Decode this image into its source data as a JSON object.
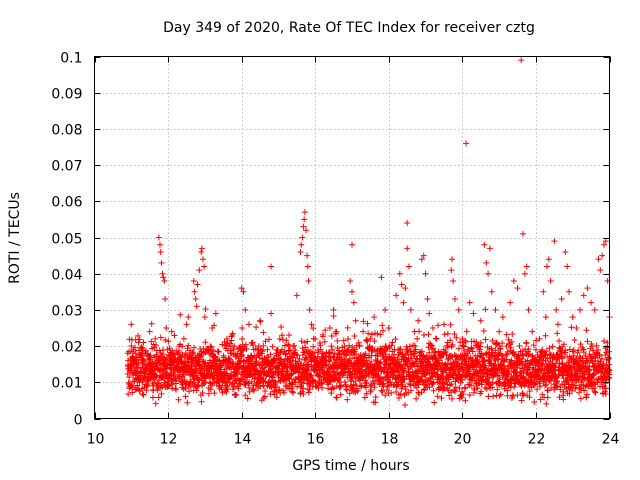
{
  "chart_data": {
    "type": "scatter",
    "title": "Day 349 of 2020, Rate Of TEC Index for receiver cztg",
    "xlabel": "GPS time / hours",
    "ylabel": "ROTI / TECUs",
    "xlim": [
      10,
      24
    ],
    "ylim": [
      0,
      0.1
    ],
    "grid": true,
    "marker": "+",
    "color": "#ff0000",
    "x_ticks": [
      {
        "value": 10,
        "label": "10"
      },
      {
        "value": 12,
        "label": "12"
      },
      {
        "value": 14,
        "label": "14"
      },
      {
        "value": 16,
        "label": "16"
      },
      {
        "value": 18,
        "label": "18"
      },
      {
        "value": 20,
        "label": "20"
      },
      {
        "value": 22,
        "label": "22"
      },
      {
        "value": 24,
        "label": "24"
      }
    ],
    "y_ticks": [
      {
        "value": 0,
        "label": "0"
      },
      {
        "value": 0.01,
        "label": "0.01"
      },
      {
        "value": 0.02,
        "label": "0.02"
      },
      {
        "value": 0.03,
        "label": "0.03"
      },
      {
        "value": 0.04,
        "label": "0.04"
      },
      {
        "value": 0.05,
        "label": "0.05"
      },
      {
        "value": 0.06,
        "label": "0.06"
      },
      {
        "value": 0.07,
        "label": "0.07"
      },
      {
        "value": 0.08,
        "label": "0.08"
      },
      {
        "value": 0.09,
        "label": "0.09"
      },
      {
        "value": 0.1,
        "label": "0.1"
      }
    ],
    "points": [
      [
        11.0,
        0.026
      ],
      [
        11.05,
        0.012
      ],
      [
        11.1,
        0.008
      ],
      [
        11.15,
        0.015
      ],
      [
        11.2,
        0.021
      ],
      [
        11.3,
        0.01
      ],
      [
        11.4,
        0.018
      ],
      [
        11.5,
        0.024
      ],
      [
        11.6,
        0.009
      ],
      [
        11.65,
        0.022
      ],
      [
        11.75,
        0.05
      ],
      [
        11.78,
        0.048
      ],
      [
        11.8,
        0.046
      ],
      [
        11.82,
        0.043
      ],
      [
        11.85,
        0.04
      ],
      [
        11.87,
        0.039
      ],
      [
        11.9,
        0.038
      ],
      [
        11.92,
        0.033
      ],
      [
        11.95,
        0.025
      ],
      [
        11.98,
        0.019
      ],
      [
        12.1,
        0.024
      ],
      [
        12.2,
        0.014
      ],
      [
        12.3,
        0.02
      ],
      [
        12.4,
        0.013
      ],
      [
        12.5,
        0.026
      ],
      [
        12.55,
        0.028
      ],
      [
        12.6,
        0.012
      ],
      [
        12.7,
        0.038
      ],
      [
        12.72,
        0.035
      ],
      [
        12.75,
        0.033
      ],
      [
        12.78,
        0.031
      ],
      [
        12.8,
        0.037
      ],
      [
        12.85,
        0.041
      ],
      [
        12.9,
        0.046
      ],
      [
        12.92,
        0.047
      ],
      [
        12.95,
        0.044
      ],
      [
        12.98,
        0.042
      ],
      [
        13.0,
        0.028
      ],
      [
        13.1,
        0.019
      ],
      [
        13.2,
        0.025
      ],
      [
        13.3,
        0.029
      ],
      [
        13.4,
        0.016
      ],
      [
        13.5,
        0.012
      ],
      [
        13.6,
        0.022
      ],
      [
        13.7,
        0.018
      ],
      [
        13.8,
        0.02
      ],
      [
        13.9,
        0.014
      ],
      [
        14.0,
        0.036
      ],
      [
        14.05,
        0.035
      ],
      [
        14.1,
        0.03
      ],
      [
        14.2,
        0.026
      ],
      [
        14.3,
        0.021
      ],
      [
        14.4,
        0.017
      ],
      [
        14.5,
        0.027
      ],
      [
        14.6,
        0.013
      ],
      [
        14.7,
        0.019
      ],
      [
        14.8,
        0.042
      ],
      [
        14.8,
        0.029
      ],
      [
        14.9,
        0.016
      ],
      [
        15.0,
        0.012
      ],
      [
        15.1,
        0.023
      ],
      [
        15.2,
        0.018
      ],
      [
        15.3,
        0.015
      ],
      [
        15.4,
        0.02
      ],
      [
        15.5,
        0.034
      ],
      [
        15.6,
        0.046
      ],
      [
        15.62,
        0.048
      ],
      [
        15.65,
        0.05
      ],
      [
        15.68,
        0.053
      ],
      [
        15.7,
        0.055
      ],
      [
        15.72,
        0.057
      ],
      [
        15.75,
        0.052
      ],
      [
        15.78,
        0.045
      ],
      [
        15.8,
        0.042
      ],
      [
        15.82,
        0.038
      ],
      [
        15.85,
        0.03
      ],
      [
        15.9,
        0.026
      ],
      [
        16.0,
        0.022
      ],
      [
        16.2,
        0.018
      ],
      [
        16.4,
        0.025
      ],
      [
        16.5,
        0.03
      ],
      [
        16.6,
        0.014
      ],
      [
        16.8,
        0.02
      ],
      [
        17.0,
        0.048
      ],
      [
        16.95,
        0.038
      ],
      [
        17.0,
        0.035
      ],
      [
        17.05,
        0.032
      ],
      [
        17.1,
        0.027
      ],
      [
        17.2,
        0.02
      ],
      [
        17.3,
        0.024
      ],
      [
        17.4,
        0.016
      ],
      [
        17.5,
        0.022
      ],
      [
        17.6,
        0.028
      ],
      [
        17.7,
        0.019
      ],
      [
        17.8,
        0.039
      ],
      [
        17.9,
        0.03
      ],
      [
        18.0,
        0.025
      ],
      [
        18.1,
        0.021
      ],
      [
        18.2,
        0.034
      ],
      [
        18.3,
        0.04
      ],
      [
        18.35,
        0.037
      ],
      [
        18.4,
        0.032
      ],
      [
        18.45,
        0.036
      ],
      [
        18.5,
        0.054
      ],
      [
        18.5,
        0.047
      ],
      [
        18.55,
        0.042
      ],
      [
        18.6,
        0.03
      ],
      [
        18.7,
        0.024
      ],
      [
        18.8,
        0.027
      ],
      [
        18.9,
        0.044
      ],
      [
        18.95,
        0.045
      ],
      [
        19.0,
        0.04
      ],
      [
        19.05,
        0.033
      ],
      [
        19.1,
        0.029
      ],
      [
        19.2,
        0.025
      ],
      [
        19.3,
        0.022
      ],
      [
        19.4,
        0.018
      ],
      [
        19.5,
        0.026
      ],
      [
        19.6,
        0.021
      ],
      [
        19.7,
        0.041
      ],
      [
        19.72,
        0.044
      ],
      [
        19.75,
        0.038
      ],
      [
        19.8,
        0.033
      ],
      [
        19.9,
        0.03
      ],
      [
        20.0,
        0.022
      ],
      [
        20.1,
        0.076
      ],
      [
        20.2,
        0.032
      ],
      [
        20.3,
        0.029
      ],
      [
        20.4,
        0.02
      ],
      [
        20.5,
        0.027
      ],
      [
        20.6,
        0.048
      ],
      [
        20.65,
        0.043
      ],
      [
        20.7,
        0.04
      ],
      [
        20.75,
        0.047
      ],
      [
        20.8,
        0.035
      ],
      [
        20.9,
        0.03
      ],
      [
        21.0,
        0.024
      ],
      [
        21.1,
        0.028
      ],
      [
        21.2,
        0.02
      ],
      [
        21.3,
        0.032
      ],
      [
        21.4,
        0.038
      ],
      [
        21.5,
        0.036
      ],
      [
        21.6,
        0.099
      ],
      [
        21.65,
        0.051
      ],
      [
        21.7,
        0.04
      ],
      [
        21.75,
        0.042
      ],
      [
        21.8,
        0.03
      ],
      [
        21.9,
        0.024
      ],
      [
        22.0,
        0.019
      ],
      [
        22.1,
        0.022
      ],
      [
        22.2,
        0.035
      ],
      [
        22.3,
        0.042
      ],
      [
        22.35,
        0.044
      ],
      [
        22.4,
        0.038
      ],
      [
        22.5,
        0.049
      ],
      [
        22.55,
        0.03
      ],
      [
        22.6,
        0.026
      ],
      [
        22.7,
        0.033
      ],
      [
        22.8,
        0.046
      ],
      [
        22.85,
        0.042
      ],
      [
        22.9,
        0.035
      ],
      [
        23.0,
        0.028
      ],
      [
        23.1,
        0.025
      ],
      [
        23.2,
        0.03
      ],
      [
        23.3,
        0.034
      ],
      [
        23.4,
        0.036
      ],
      [
        23.5,
        0.032
      ],
      [
        23.6,
        0.03
      ],
      [
        23.7,
        0.044
      ],
      [
        23.75,
        0.041
      ],
      [
        23.8,
        0.045
      ],
      [
        23.85,
        0.048
      ],
      [
        23.9,
        0.049
      ],
      [
        23.95,
        0.038
      ],
      [
        24.0,
        0.028
      ]
    ],
    "dense_band": {
      "x_start": 10.9,
      "x_end": 24.0,
      "typical_min": 0.003,
      "typical_max": 0.022,
      "center": 0.011
    }
  }
}
